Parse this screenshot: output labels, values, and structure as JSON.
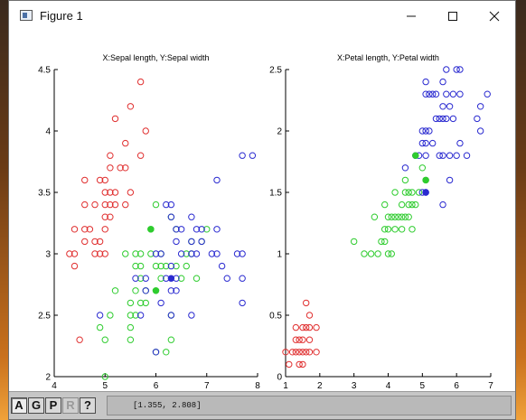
{
  "window": {
    "title": "Figure 1",
    "controls": [
      "minimize",
      "maximize",
      "close"
    ]
  },
  "toolbar": {
    "buttons": [
      {
        "label": "A",
        "state": "pressed"
      },
      {
        "label": "G",
        "state": "normal"
      },
      {
        "label": "P",
        "state": "normal"
      },
      {
        "label": "R",
        "state": "disabled"
      },
      {
        "label": "?",
        "state": "normal"
      }
    ],
    "coordinate_readout": "[1.355, 2.808]"
  },
  "colors": {
    "setosa": "#e03030",
    "versicolor": "#2ecc2e",
    "virginica": "#2a2ad0"
  },
  "chart_data": [
    {
      "type": "scatter",
      "title": "X:Sepal length, Y:Sepal width",
      "xlim": [
        4,
        8
      ],
      "ylim": [
        2,
        4.5
      ],
      "xticks": [
        "4",
        "5",
        "6",
        "7",
        "8"
      ],
      "yticks": [
        "2",
        "2.5",
        "3",
        "3.5",
        "4",
        "4.5"
      ],
      "grid": false,
      "series": [
        {
          "color": "#e03030",
          "filled": false,
          "points": [
            [
              4.3,
              3.0
            ],
            [
              4.4,
              2.9
            ],
            [
              4.4,
              3.0
            ],
            [
              4.4,
              3.2
            ],
            [
              4.5,
              2.3
            ],
            [
              4.6,
              3.1
            ],
            [
              4.6,
              3.2
            ],
            [
              4.6,
              3.4
            ],
            [
              4.6,
              3.6
            ],
            [
              4.7,
              3.2
            ],
            [
              4.8,
              3.0
            ],
            [
              4.8,
              3.1
            ],
            [
              4.8,
              3.4
            ],
            [
              4.9,
              3.0
            ],
            [
              4.9,
              3.1
            ],
            [
              4.9,
              3.6
            ],
            [
              5.0,
              3.0
            ],
            [
              5.0,
              3.2
            ],
            [
              5.0,
              3.3
            ],
            [
              5.0,
              3.4
            ],
            [
              5.0,
              3.5
            ],
            [
              5.0,
              3.6
            ],
            [
              5.1,
              3.3
            ],
            [
              5.1,
              3.4
            ],
            [
              5.1,
              3.5
            ],
            [
              5.1,
              3.7
            ],
            [
              5.1,
              3.8
            ],
            [
              5.2,
              3.4
            ],
            [
              5.2,
              3.5
            ],
            [
              5.2,
              4.1
            ],
            [
              5.3,
              3.7
            ],
            [
              5.4,
              3.4
            ],
            [
              5.4,
              3.7
            ],
            [
              5.4,
              3.9
            ],
            [
              5.5,
              3.5
            ],
            [
              5.5,
              4.2
            ],
            [
              5.7,
              3.8
            ],
            [
              5.7,
              4.4
            ],
            [
              5.8,
              4.0
            ]
          ]
        },
        {
          "color": "#2ecc2e",
          "filled": false,
          "points": [
            [
              4.9,
              2.4
            ],
            [
              5.0,
              2.0
            ],
            [
              5.0,
              2.3
            ],
            [
              5.1,
              2.5
            ],
            [
              5.2,
              2.7
            ],
            [
              5.4,
              3.0
            ],
            [
              5.5,
              2.3
            ],
            [
              5.5,
              2.4
            ],
            [
              5.5,
              2.5
            ],
            [
              5.5,
              2.6
            ],
            [
              5.6,
              2.5
            ],
            [
              5.6,
              2.7
            ],
            [
              5.6,
              2.9
            ],
            [
              5.6,
              3.0
            ],
            [
              5.7,
              2.6
            ],
            [
              5.7,
              2.8
            ],
            [
              5.7,
              2.9
            ],
            [
              5.7,
              3.0
            ],
            [
              5.8,
              2.6
            ],
            [
              5.8,
              2.7
            ],
            [
              5.9,
              3.0
            ],
            [
              5.9,
              3.2
            ],
            [
              6.0,
              2.2
            ],
            [
              6.0,
              2.7
            ],
            [
              6.0,
              2.9
            ],
            [
              6.0,
              3.4
            ],
            [
              6.1,
              2.8
            ],
            [
              6.1,
              2.9
            ],
            [
              6.1,
              3.0
            ],
            [
              6.2,
              2.2
            ],
            [
              6.2,
              2.9
            ],
            [
              6.3,
              2.3
            ],
            [
              6.3,
              2.5
            ],
            [
              6.3,
              3.3
            ],
            [
              6.4,
              2.9
            ],
            [
              6.4,
              3.2
            ],
            [
              6.5,
              2.8
            ],
            [
              6.6,
              2.9
            ],
            [
              6.6,
              3.0
            ],
            [
              6.7,
              3.0
            ],
            [
              6.7,
              3.1
            ],
            [
              6.8,
              2.8
            ],
            [
              6.9,
              3.1
            ],
            [
              7.0,
              3.2
            ]
          ]
        },
        {
          "color": "#2a2ad0",
          "filled": false,
          "points": [
            [
              4.9,
              2.5
            ],
            [
              5.6,
              2.8
            ],
            [
              5.7,
              2.5
            ],
            [
              5.8,
              2.7
            ],
            [
              5.8,
              2.8
            ],
            [
              6.0,
              2.2
            ],
            [
              6.0,
              3.0
            ],
            [
              6.1,
              2.6
            ],
            [
              6.1,
              3.0
            ],
            [
              6.2,
              2.8
            ],
            [
              6.2,
              3.4
            ],
            [
              6.3,
              2.5
            ],
            [
              6.3,
              2.7
            ],
            [
              6.3,
              2.9
            ],
            [
              6.3,
              3.3
            ],
            [
              6.3,
              3.4
            ],
            [
              6.4,
              2.7
            ],
            [
              6.4,
              2.8
            ],
            [
              6.4,
              3.1
            ],
            [
              6.4,
              3.2
            ],
            [
              6.5,
              3.0
            ],
            [
              6.5,
              3.2
            ],
            [
              6.7,
              2.5
            ],
            [
              6.7,
              3.0
            ],
            [
              6.7,
              3.1
            ],
            [
              6.7,
              3.3
            ],
            [
              6.8,
              3.0
            ],
            [
              6.8,
              3.2
            ],
            [
              6.9,
              3.1
            ],
            [
              6.9,
              3.2
            ],
            [
              7.1,
              3.0
            ],
            [
              7.2,
              3.0
            ],
            [
              7.2,
              3.2
            ],
            [
              7.2,
              3.6
            ],
            [
              7.3,
              2.9
            ],
            [
              7.4,
              2.8
            ],
            [
              7.6,
              3.0
            ],
            [
              7.7,
              2.6
            ],
            [
              7.7,
              2.8
            ],
            [
              7.7,
              3.0
            ],
            [
              7.7,
              3.8
            ],
            [
              7.9,
              3.8
            ]
          ]
        },
        {
          "color": "#2ecc2e",
          "filled": true,
          "points": [
            [
              5.9,
              3.2
            ],
            [
              6.0,
              2.7
            ]
          ]
        },
        {
          "color": "#2a2ad0",
          "filled": true,
          "points": [
            [
              6.3,
              2.8
            ]
          ]
        }
      ]
    },
    {
      "type": "scatter",
      "title": "X:Petal length, Y:Petal width",
      "xlim": [
        1,
        7
      ],
      "ylim": [
        0,
        2.5
      ],
      "xticks": [
        "1",
        "2",
        "3",
        "4",
        "5",
        "6",
        "7"
      ],
      "yticks": [
        "0",
        "0.5",
        "1",
        "1.5",
        "2",
        "2.5"
      ],
      "grid": false,
      "series": [
        {
          "color": "#e03030",
          "filled": false,
          "points": [
            [
              1.0,
              0.2
            ],
            [
              1.1,
              0.1
            ],
            [
              1.2,
              0.2
            ],
            [
              1.3,
              0.2
            ],
            [
              1.3,
              0.3
            ],
            [
              1.3,
              0.4
            ],
            [
              1.4,
              0.1
            ],
            [
              1.4,
              0.2
            ],
            [
              1.4,
              0.3
            ],
            [
              1.5,
              0.1
            ],
            [
              1.5,
              0.2
            ],
            [
              1.5,
              0.3
            ],
            [
              1.5,
              0.4
            ],
            [
              1.6,
              0.2
            ],
            [
              1.6,
              0.4
            ],
            [
              1.6,
              0.6
            ],
            [
              1.7,
              0.2
            ],
            [
              1.7,
              0.3
            ],
            [
              1.7,
              0.4
            ],
            [
              1.7,
              0.5
            ],
            [
              1.9,
              0.2
            ],
            [
              1.9,
              0.4
            ]
          ]
        },
        {
          "color": "#2ecc2e",
          "filled": false,
          "points": [
            [
              3.0,
              1.1
            ],
            [
              3.3,
              1.0
            ],
            [
              3.5,
              1.0
            ],
            [
              3.6,
              1.3
            ],
            [
              3.7,
              1.0
            ],
            [
              3.8,
              1.1
            ],
            [
              3.9,
              1.1
            ],
            [
              3.9,
              1.2
            ],
            [
              3.9,
              1.4
            ],
            [
              4.0,
              1.0
            ],
            [
              4.0,
              1.2
            ],
            [
              4.0,
              1.3
            ],
            [
              4.1,
              1.0
            ],
            [
              4.1,
              1.3
            ],
            [
              4.2,
              1.2
            ],
            [
              4.2,
              1.3
            ],
            [
              4.2,
              1.5
            ],
            [
              4.3,
              1.3
            ],
            [
              4.4,
              1.2
            ],
            [
              4.4,
              1.3
            ],
            [
              4.4,
              1.4
            ],
            [
              4.5,
              1.3
            ],
            [
              4.5,
              1.5
            ],
            [
              4.5,
              1.6
            ],
            [
              4.6,
              1.3
            ],
            [
              4.6,
              1.4
            ],
            [
              4.6,
              1.5
            ],
            [
              4.7,
              1.2
            ],
            [
              4.7,
              1.4
            ],
            [
              4.7,
              1.5
            ],
            [
              4.8,
              1.4
            ],
            [
              4.9,
              1.5
            ],
            [
              5.0,
              1.7
            ],
            [
              5.1,
              1.6
            ]
          ]
        },
        {
          "color": "#2a2ad0",
          "filled": false,
          "points": [
            [
              4.5,
              1.7
            ],
            [
              4.8,
              1.8
            ],
            [
              4.9,
              1.8
            ],
            [
              5.0,
              1.5
            ],
            [
              5.0,
              2.0
            ],
            [
              5.0,
              1.9
            ],
            [
              5.1,
              1.5
            ],
            [
              5.1,
              1.8
            ],
            [
              5.1,
              1.9
            ],
            [
              5.1,
              2.0
            ],
            [
              5.1,
              2.3
            ],
            [
              5.1,
              2.4
            ],
            [
              5.2,
              2.0
            ],
            [
              5.2,
              2.3
            ],
            [
              5.3,
              1.9
            ],
            [
              5.3,
              2.3
            ],
            [
              5.4,
              2.1
            ],
            [
              5.4,
              2.3
            ],
            [
              5.5,
              1.8
            ],
            [
              5.5,
              2.1
            ],
            [
              5.6,
              1.4
            ],
            [
              5.6,
              1.8
            ],
            [
              5.6,
              2.1
            ],
            [
              5.6,
              2.2
            ],
            [
              5.6,
              2.4
            ],
            [
              5.7,
              2.1
            ],
            [
              5.7,
              2.3
            ],
            [
              5.7,
              2.5
            ],
            [
              5.8,
              1.6
            ],
            [
              5.8,
              1.8
            ],
            [
              5.8,
              2.2
            ],
            [
              5.9,
              2.1
            ],
            [
              5.9,
              2.3
            ],
            [
              6.0,
              1.8
            ],
            [
              6.0,
              2.5
            ],
            [
              6.1,
              1.9
            ],
            [
              6.1,
              2.3
            ],
            [
              6.1,
              2.5
            ],
            [
              6.3,
              1.8
            ],
            [
              6.6,
              2.1
            ],
            [
              6.7,
              2.0
            ],
            [
              6.7,
              2.2
            ],
            [
              6.9,
              2.3
            ]
          ]
        },
        {
          "color": "#2ecc2e",
          "filled": true,
          "points": [
            [
              4.8,
              1.8
            ],
            [
              5.1,
              1.6
            ]
          ]
        },
        {
          "color": "#2a2ad0",
          "filled": true,
          "points": [
            [
              5.1,
              1.5
            ]
          ]
        }
      ]
    }
  ]
}
